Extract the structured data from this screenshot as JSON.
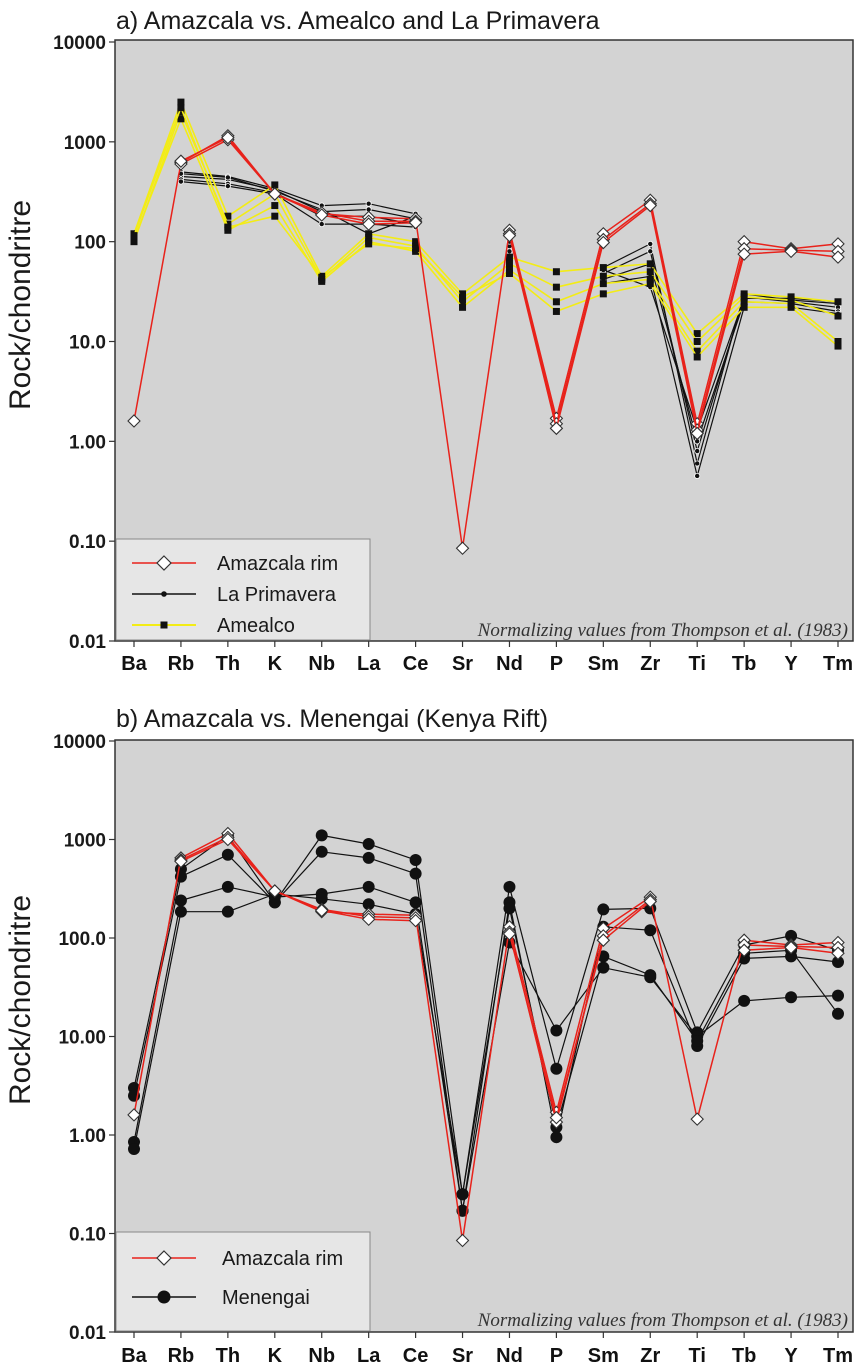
{
  "chart_data": [
    {
      "type": "line",
      "title": "a) Amazcala vs. Amealco and La Primavera",
      "ylabel": "Rock/chondritre",
      "xlabel": "",
      "yscale": "log",
      "ylim": [
        0.01,
        10000
      ],
      "yticks": [
        "10000",
        "1000",
        "100",
        "10.0",
        "1.00",
        "0.10",
        "0.01"
      ],
      "categories": [
        "Ba",
        "Rb",
        "Th",
        "K",
        "Nb",
        "La",
        "Ce",
        "Sr",
        "Nd",
        "P",
        "Sm",
        "Zr",
        "Ti",
        "Tb",
        "Y",
        "Tm"
      ],
      "note": "Normalizing values from Thompson et al. (1983)",
      "legend_position": "bottom-left",
      "series": [
        {
          "name": "Amazcala rim",
          "group": "amazcala",
          "color": "#e8221b",
          "marker": "diamond",
          "values": [
            1.6,
            620,
            1150,
            300,
            190,
            175,
            170,
            0.085,
            130,
            1.7,
            120,
            260,
            1.5,
            100,
            85,
            95
          ]
        },
        {
          "name": "Amazcala rim 2",
          "group": "amazcala",
          "color": "#e8221b",
          "marker": "diamond",
          "values": [
            null,
            600,
            1050,
            300,
            195,
            160,
            160,
            null,
            120,
            1.5,
            105,
            240,
            1.3,
            85,
            82,
            80
          ]
        },
        {
          "name": "Amazcala rim 3",
          "group": "amazcala",
          "color": "#e8221b",
          "marker": "diamond",
          "values": [
            null,
            640,
            1100,
            300,
            185,
            150,
            155,
            null,
            115,
            1.35,
            98,
            230,
            1.2,
            75,
            80,
            70
          ]
        },
        {
          "name": "La Primavera",
          "group": "primavera",
          "color": "#111111",
          "marker": "dot",
          "values": [
            null,
            500,
            450,
            340,
            230,
            240,
            190,
            null,
            110,
            null,
            55,
            95,
            0.6,
            30,
            26,
            24
          ]
        },
        {
          "name": "La Primavera 2",
          "group": "primavera",
          "color": "#111111",
          "marker": "dot",
          "values": [
            null,
            450,
            420,
            330,
            200,
            210,
            170,
            null,
            90,
            null,
            48,
            80,
            0.8,
            28,
            25,
            22
          ]
        },
        {
          "name": "La Primavera 3",
          "group": "primavera",
          "color": "#111111",
          "marker": "dot",
          "values": [
            null,
            420,
            380,
            310,
            180,
            180,
            150,
            null,
            80,
            null,
            42,
            60,
            1.0,
            25,
            24,
            20
          ]
        },
        {
          "name": "La Primavera 4",
          "group": "primavera",
          "color": "#111111",
          "marker": "dot",
          "values": [
            null,
            400,
            360,
            300,
            150,
            150,
            140,
            null,
            70,
            null,
            38,
            45,
            0.45,
            22,
            22,
            19
          ]
        },
        {
          "name": "La Primavera 5",
          "group": "primavera",
          "color": "#111111",
          "marker": "dot",
          "values": [
            null,
            480,
            440,
            320,
            210,
            120,
            180,
            null,
            100,
            null,
            52,
            35,
            1.3,
            27,
            27,
            25
          ]
        },
        {
          "name": "Amealco",
          "group": "amealco",
          "color": "#f3ec16",
          "marker": "square",
          "values": [
            120,
            2500,
            180,
            370,
            45,
            120,
            100,
            30,
            70,
            50,
            55,
            60,
            12,
            30,
            28,
            25
          ]
        },
        {
          "name": "Amealco 2",
          "group": "amealco",
          "color": "#f3ec16",
          "marker": "square",
          "values": [
            100,
            2000,
            150,
            300,
            42,
            110,
            90,
            25,
            60,
            35,
            45,
            50,
            10,
            28,
            26,
            18
          ]
        },
        {
          "name": "Amealco 3",
          "group": "amealco",
          "color": "#f3ec16",
          "marker": "square",
          "values": [
            105,
            1700,
            130,
            230,
            40,
            100,
            80,
            22,
            52,
            25,
            38,
            42,
            8,
            25,
            24,
            10
          ]
        },
        {
          "name": "Amealco 4",
          "group": "amealco",
          "color": "#f3ec16",
          "marker": "square",
          "values": [
            115,
            2200,
            140,
            180,
            44,
            95,
            85,
            28,
            48,
            20,
            30,
            38,
            7,
            22,
            22,
            9
          ]
        }
      ]
    },
    {
      "type": "line",
      "title": "b) Amazcala vs. Menengai (Kenya Rift)",
      "ylabel": "Rock/chondritre",
      "xlabel": "",
      "yscale": "log",
      "ylim": [
        0.01,
        10000
      ],
      "yticks": [
        "10000",
        "1000",
        "100.0",
        "10.00",
        "1.00",
        "0.10",
        "0.01"
      ],
      "categories": [
        "Ba",
        "Rb",
        "Th",
        "K",
        "Nb",
        "La",
        "Ce",
        "Sr",
        "Nd",
        "P",
        "Sm",
        "Zr",
        "Ti",
        "Tb",
        "Y",
        "Tm"
      ],
      "note": "Normalizing values from Thompson et al. (1983)",
      "legend_position": "bottom-left",
      "series": [
        {
          "name": "Amazcala rim",
          "group": "amazcala",
          "color": "#e8221b",
          "marker": "diamond",
          "values": [
            1.6,
            650,
            1150,
            300,
            185,
            175,
            170,
            0.085,
            130,
            1.7,
            125,
            260,
            1.45,
            95,
            85,
            90
          ]
        },
        {
          "name": "Amazcala rim 2",
          "group": "amazcala",
          "color": "#e8221b",
          "marker": "diamond",
          "values": [
            null,
            620,
            1050,
            300,
            195,
            165,
            160,
            null,
            115,
            1.35,
            105,
            245,
            null,
            85,
            82,
            80
          ]
        },
        {
          "name": "Amazcala rim 3",
          "group": "amazcala",
          "color": "#e8221b",
          "marker": "diamond",
          "values": [
            null,
            600,
            1000,
            300,
            190,
            155,
            150,
            null,
            110,
            1.5,
            95,
            235,
            null,
            75,
            80,
            70
          ]
        },
        {
          "name": "Menengai",
          "group": "menengai",
          "color": "#111111",
          "marker": "circle",
          "values": [
            3.0,
            500,
            1100,
            230,
            1100,
            900,
            620,
            0.25,
            330,
            4.7,
            195,
            200,
            11,
            85,
            105,
            75
          ]
        },
        {
          "name": "Menengai 2",
          "group": "menengai",
          "color": "#111111",
          "marker": "circle",
          "values": [
            2.5,
            420,
            700,
            230,
            750,
            650,
            450,
            0.17,
            230,
            0.95,
            130,
            120,
            8,
            62,
            65,
            57
          ]
        },
        {
          "name": "Menengai 3",
          "group": "menengai",
          "color": "#111111",
          "marker": "circle",
          "values": [
            0.85,
            240,
            330,
            260,
            280,
            330,
            230,
            0.17,
            90,
            11.5,
            50,
            40,
            10,
            23,
            25,
            26
          ]
        },
        {
          "name": "Menengai 4",
          "group": "menengai",
          "color": "#111111",
          "marker": "circle",
          "values": [
            0.72,
            185,
            185,
            280,
            250,
            220,
            175,
            0.25,
            200,
            1.2,
            65,
            42,
            9,
            70,
            75,
            17
          ]
        }
      ]
    }
  ],
  "legends": [
    {
      "items": [
        {
          "label": "Amazcala rim"
        },
        {
          "label": "La Primavera"
        },
        {
          "label": "Amealco"
        }
      ]
    },
    {
      "items": [
        {
          "label": "Amazcala rim"
        },
        {
          "label": "Menengai"
        }
      ]
    }
  ]
}
